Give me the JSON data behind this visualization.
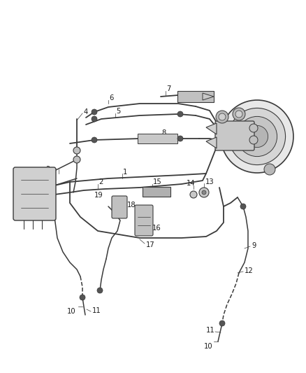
{
  "bg_color": "#ffffff",
  "line_color": "#3a3a3a",
  "label_color": "#1a1a1a",
  "fig_width": 4.38,
  "fig_height": 5.33,
  "dpi": 100
}
